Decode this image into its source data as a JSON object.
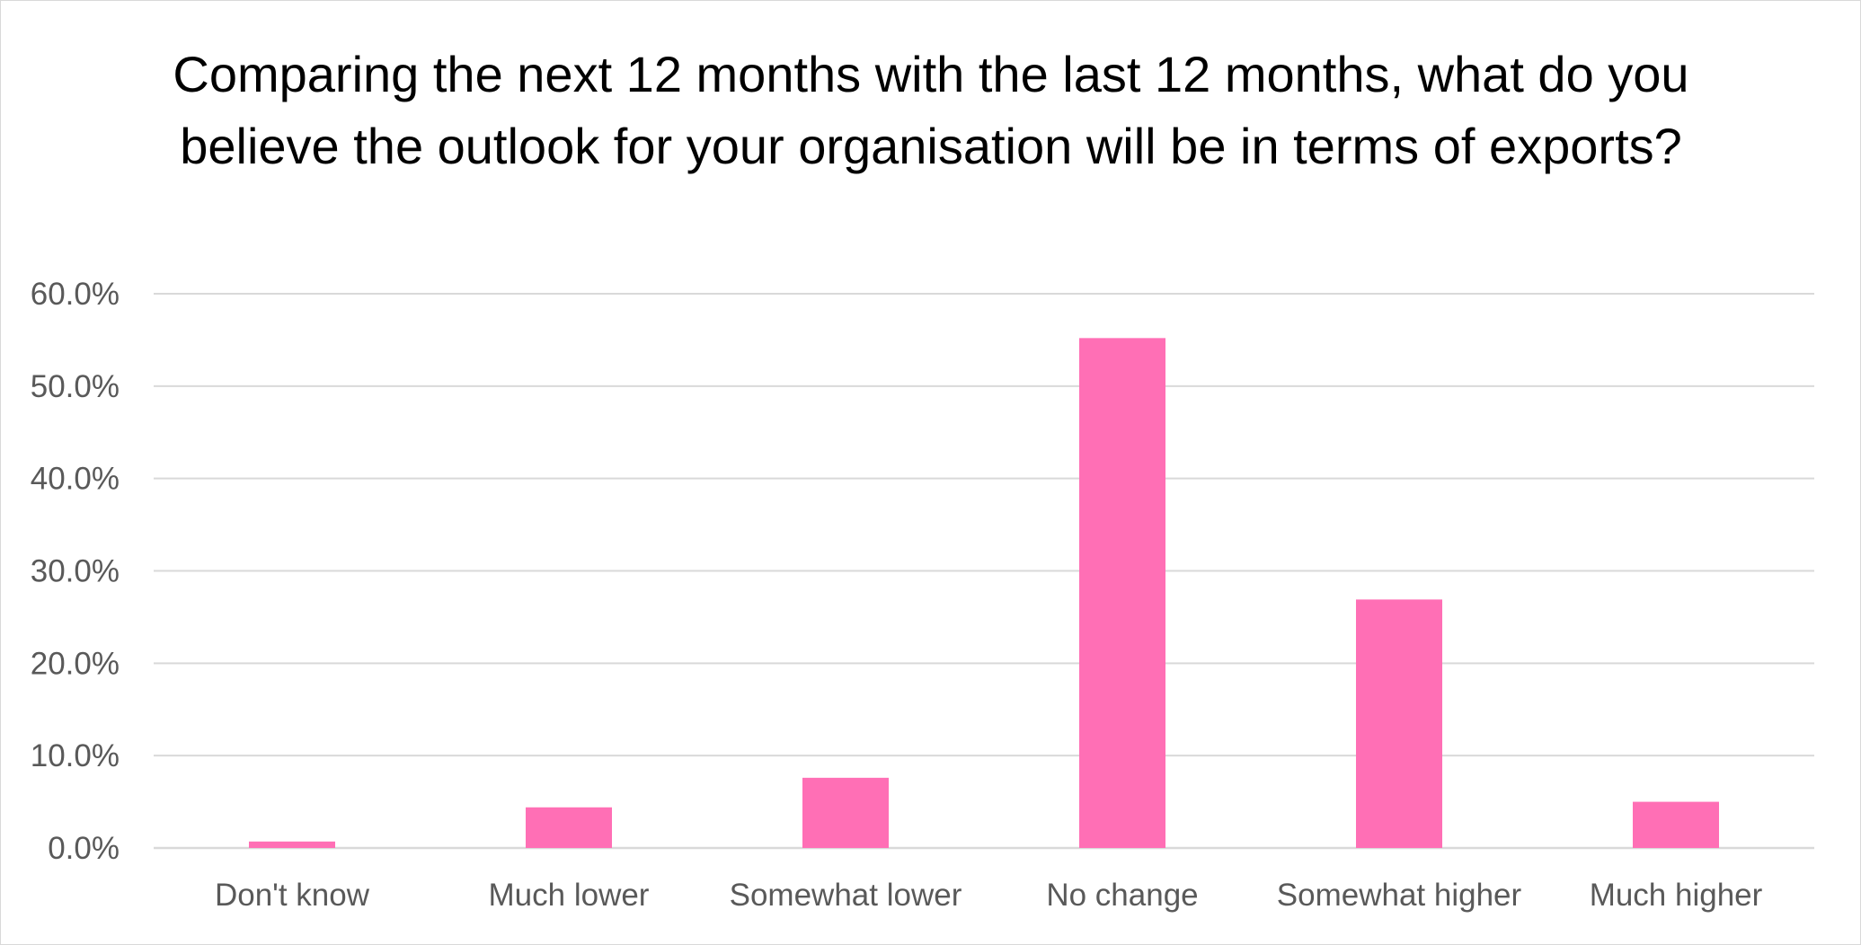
{
  "chart_data": {
    "type": "bar",
    "title": "Comparing the next 12 months with the last 12 months, what do you believe the outlook for your organisation will be in terms of exports?",
    "categories": [
      "Don't know",
      "Much lower",
      "Somewhat lower",
      "No change",
      "Somewhat higher",
      "Much higher"
    ],
    "values": [
      0.7,
      4.4,
      7.6,
      55.2,
      26.9,
      5.0
    ],
    "xlabel": "",
    "ylabel": "",
    "ylim": [
      0,
      60
    ],
    "yticks": [
      "0.0%",
      "10.0%",
      "20.0%",
      "30.0%",
      "40.0%",
      "50.0%",
      "60.0%"
    ],
    "grid": true,
    "legend": "none",
    "bar_color": "#FF6FB5",
    "gridline_color": "#D9D9D9"
  }
}
